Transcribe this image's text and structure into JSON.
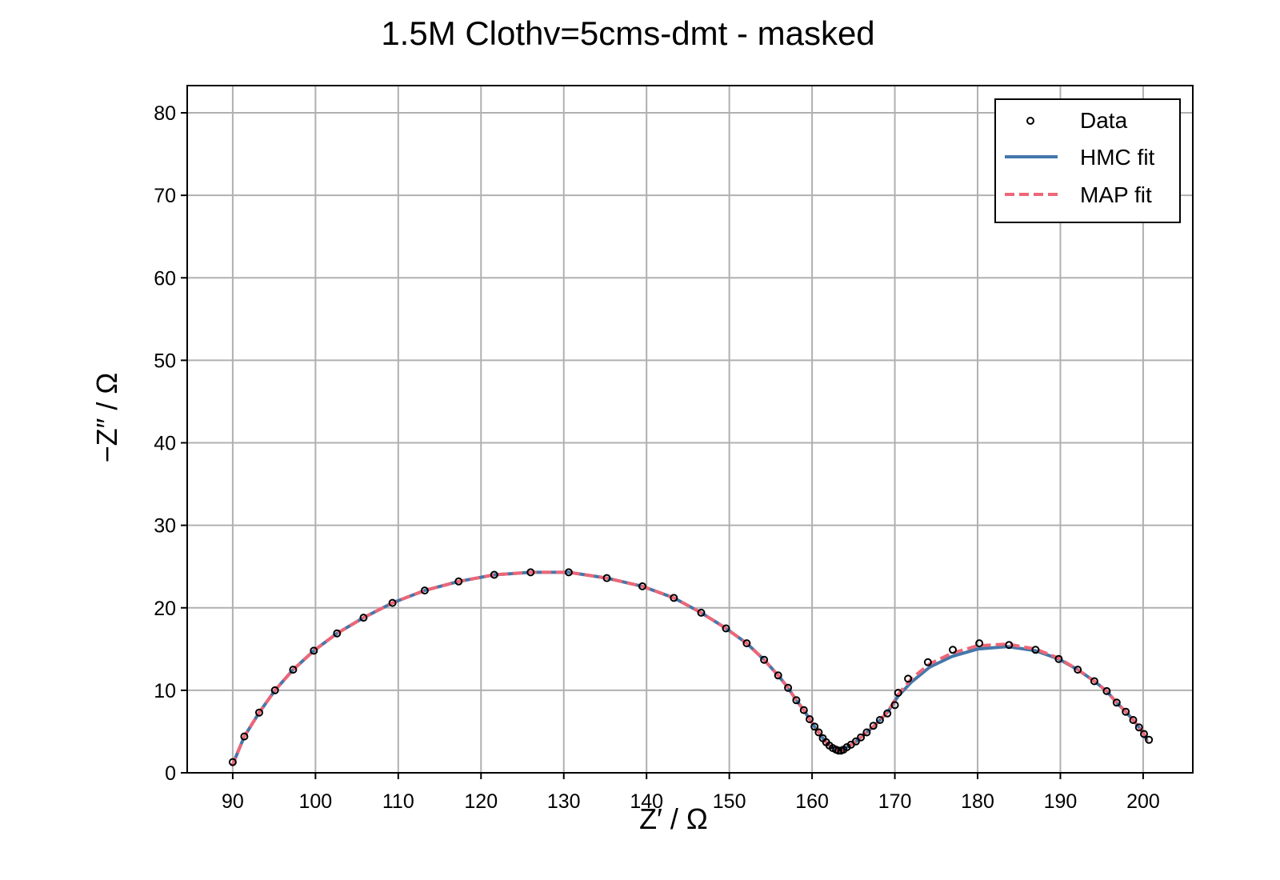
{
  "chart_data": {
    "type": "scatter",
    "title": "1.5M Clothv=5cms-dmt - masked",
    "xlabel": "Z′ / Ω",
    "ylabel": "−Z″ / Ω",
    "xlim": [
      84.5,
      206
    ],
    "ylim": [
      0,
      83.3
    ],
    "xticks": [
      90,
      100,
      110,
      120,
      130,
      140,
      150,
      160,
      170,
      180,
      190,
      200
    ],
    "yticks": [
      0,
      10,
      20,
      30,
      40,
      50,
      60,
      70,
      80
    ],
    "grid": true,
    "legend_position": "top-right",
    "colors": {
      "data_marker": "#000000",
      "hmc": "#4477aa",
      "map": "#ee6677",
      "grid": "#b0b0b0"
    },
    "series": [
      {
        "name": "Data",
        "kind": "markers",
        "points": [
          [
            90.0,
            1.3
          ],
          [
            91.4,
            4.4
          ],
          [
            93.2,
            7.3
          ],
          [
            95.1,
            10.0
          ],
          [
            97.3,
            12.5
          ],
          [
            99.8,
            14.8
          ],
          [
            102.6,
            16.9
          ],
          [
            105.8,
            18.8
          ],
          [
            109.3,
            20.6
          ],
          [
            113.2,
            22.1
          ],
          [
            117.3,
            23.2
          ],
          [
            121.6,
            24.0
          ],
          [
            126.0,
            24.3
          ],
          [
            130.6,
            24.3
          ],
          [
            135.2,
            23.6
          ],
          [
            139.5,
            22.6
          ],
          [
            143.3,
            21.2
          ],
          [
            146.6,
            19.4
          ],
          [
            149.6,
            17.5
          ],
          [
            152.1,
            15.7
          ],
          [
            154.2,
            13.7
          ],
          [
            155.9,
            11.8
          ],
          [
            157.1,
            10.3
          ],
          [
            158.1,
            8.8
          ],
          [
            159.0,
            7.6
          ],
          [
            159.7,
            6.5
          ],
          [
            160.3,
            5.6
          ],
          [
            160.8,
            4.9
          ],
          [
            161.3,
            4.2
          ],
          [
            161.7,
            3.7
          ],
          [
            162.1,
            3.3
          ],
          [
            162.5,
            3.0
          ],
          [
            162.9,
            2.8
          ],
          [
            163.2,
            2.7
          ],
          [
            163.5,
            2.7
          ],
          [
            163.8,
            2.8
          ],
          [
            164.2,
            3.1
          ],
          [
            164.7,
            3.4
          ],
          [
            165.3,
            3.8
          ],
          [
            165.9,
            4.3
          ],
          [
            166.6,
            4.9
          ],
          [
            167.4,
            5.7
          ],
          [
            168.2,
            6.4
          ],
          [
            169.1,
            7.2
          ],
          [
            170.0,
            8.2
          ],
          [
            170.4,
            9.7
          ],
          [
            171.6,
            11.4
          ],
          [
            174.0,
            13.4
          ],
          [
            177.0,
            14.9
          ],
          [
            180.2,
            15.7
          ],
          [
            183.8,
            15.5
          ],
          [
            187.0,
            14.9
          ],
          [
            189.8,
            13.8
          ],
          [
            192.1,
            12.5
          ],
          [
            194.1,
            11.1
          ],
          [
            195.6,
            9.9
          ],
          [
            196.8,
            8.5
          ],
          [
            197.9,
            7.4
          ],
          [
            198.8,
            6.4
          ],
          [
            199.5,
            5.5
          ],
          [
            200.1,
            4.7
          ],
          [
            200.7,
            4.0
          ]
        ]
      },
      {
        "name": "HMC fit",
        "kind": "line",
        "points": [
          [
            89.9,
            0.8
          ],
          [
            91.4,
            4.4
          ],
          [
            93.2,
            7.3
          ],
          [
            95.1,
            10.0
          ],
          [
            97.3,
            12.5
          ],
          [
            99.8,
            14.8
          ],
          [
            102.6,
            16.9
          ],
          [
            105.8,
            18.8
          ],
          [
            109.3,
            20.6
          ],
          [
            113.2,
            22.1
          ],
          [
            117.3,
            23.2
          ],
          [
            121.6,
            24.0
          ],
          [
            126.0,
            24.3
          ],
          [
            130.6,
            24.3
          ],
          [
            135.2,
            23.6
          ],
          [
            139.5,
            22.6
          ],
          [
            143.3,
            21.2
          ],
          [
            146.6,
            19.4
          ],
          [
            149.6,
            17.5
          ],
          [
            152.1,
            15.7
          ],
          [
            154.2,
            13.7
          ],
          [
            155.9,
            11.8
          ],
          [
            157.1,
            10.3
          ],
          [
            158.1,
            8.8
          ],
          [
            159.0,
            7.6
          ],
          [
            159.7,
            6.5
          ],
          [
            160.3,
            5.6
          ],
          [
            160.8,
            4.9
          ],
          [
            161.3,
            4.2
          ],
          [
            161.7,
            3.7
          ],
          [
            162.1,
            3.3
          ],
          [
            162.5,
            3.0
          ],
          [
            162.9,
            2.8
          ],
          [
            163.2,
            2.7
          ],
          [
            163.5,
            2.7
          ],
          [
            163.8,
            2.8
          ],
          [
            164.2,
            3.1
          ],
          [
            164.7,
            3.4
          ],
          [
            165.3,
            3.8
          ],
          [
            165.9,
            4.3
          ],
          [
            166.6,
            4.9
          ],
          [
            167.4,
            5.6
          ],
          [
            168.2,
            6.4
          ],
          [
            169.1,
            7.3
          ],
          [
            170.4,
            9.3
          ],
          [
            172.0,
            11.0
          ],
          [
            174.2,
            12.8
          ],
          [
            176.9,
            14.1
          ],
          [
            180.0,
            15.0
          ],
          [
            183.6,
            15.3
          ],
          [
            187.0,
            14.8
          ],
          [
            189.8,
            13.8
          ],
          [
            192.1,
            12.5
          ],
          [
            194.1,
            11.1
          ],
          [
            195.6,
            9.9
          ],
          [
            196.8,
            8.5
          ],
          [
            197.9,
            7.4
          ],
          [
            198.8,
            6.4
          ],
          [
            199.5,
            5.5
          ],
          [
            200.1,
            4.7
          ],
          [
            200.5,
            3.8
          ]
        ]
      },
      {
        "name": "MAP fit",
        "kind": "dashed-line",
        "points": [
          [
            89.9,
            0.8
          ],
          [
            91.4,
            4.4
          ],
          [
            93.2,
            7.3
          ],
          [
            95.1,
            10.0
          ],
          [
            97.3,
            12.5
          ],
          [
            99.8,
            14.8
          ],
          [
            102.6,
            16.9
          ],
          [
            105.8,
            18.8
          ],
          [
            109.3,
            20.6
          ],
          [
            113.2,
            22.1
          ],
          [
            117.3,
            23.2
          ],
          [
            121.6,
            24.0
          ],
          [
            126.0,
            24.3
          ],
          [
            130.6,
            24.3
          ],
          [
            135.2,
            23.6
          ],
          [
            139.5,
            22.6
          ],
          [
            143.3,
            21.2
          ],
          [
            146.6,
            19.4
          ],
          [
            149.6,
            17.5
          ],
          [
            152.1,
            15.7
          ],
          [
            154.2,
            13.7
          ],
          [
            155.9,
            11.8
          ],
          [
            157.1,
            10.3
          ],
          [
            158.1,
            8.8
          ],
          [
            159.0,
            7.6
          ],
          [
            159.7,
            6.5
          ],
          [
            160.3,
            5.6
          ],
          [
            160.8,
            4.9
          ],
          [
            161.3,
            4.2
          ],
          [
            161.7,
            3.7
          ],
          [
            162.1,
            3.3
          ],
          [
            162.5,
            3.0
          ],
          [
            162.9,
            2.8
          ],
          [
            163.2,
            2.7
          ],
          [
            163.5,
            2.7
          ],
          [
            163.8,
            2.8
          ],
          [
            164.2,
            3.1
          ],
          [
            164.7,
            3.4
          ],
          [
            165.3,
            3.8
          ],
          [
            165.9,
            4.3
          ],
          [
            166.6,
            4.9
          ],
          [
            167.4,
            5.6
          ],
          [
            168.2,
            6.4
          ],
          [
            169.1,
            7.3
          ],
          [
            170.4,
            9.5
          ],
          [
            172.0,
            11.4
          ],
          [
            174.2,
            13.2
          ],
          [
            176.9,
            14.5
          ],
          [
            180.0,
            15.4
          ],
          [
            183.6,
            15.6
          ],
          [
            187.0,
            15.0
          ],
          [
            189.8,
            13.9
          ],
          [
            192.1,
            12.5
          ],
          [
            194.1,
            11.1
          ],
          [
            195.6,
            9.9
          ],
          [
            196.8,
            8.5
          ],
          [
            197.9,
            7.4
          ],
          [
            198.8,
            6.4
          ],
          [
            199.5,
            5.5
          ],
          [
            200.1,
            4.7
          ],
          [
            200.5,
            3.8
          ]
        ]
      }
    ]
  }
}
